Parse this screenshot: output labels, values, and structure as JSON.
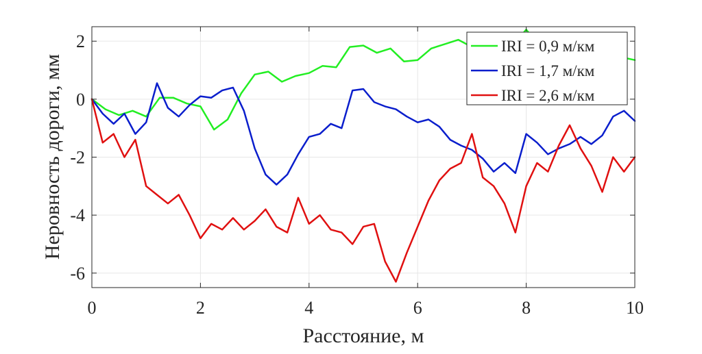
{
  "chart_data": {
    "type": "line",
    "title": "",
    "xlabel": "Расстояние, м",
    "ylabel": "Неровность дороги, мм",
    "xlim": [
      0,
      10
    ],
    "ylim": [
      -6.5,
      2.5
    ],
    "xticks": [
      0,
      2,
      4,
      6,
      8,
      10
    ],
    "yticks": [
      -6,
      -4,
      -2,
      0,
      2
    ],
    "xtick_labels": [
      "0",
      "2",
      "4",
      "6",
      "8",
      "10"
    ],
    "ytick_labels": [
      "-6",
      "-4",
      "-2",
      "0",
      "2"
    ],
    "grid": true,
    "legend_position": "top-right",
    "series": [
      {
        "name": "IRI = 0,9 м/км",
        "color": "#22ee22",
        "x": [
          0,
          0.25,
          0.5,
          0.75,
          1.0,
          1.25,
          1.5,
          1.75,
          2.0,
          2.25,
          2.5,
          2.75,
          3.0,
          3.25,
          3.5,
          3.75,
          4.0,
          4.25,
          4.5,
          4.75,
          5.0,
          5.25,
          5.5,
          5.75,
          6.0,
          6.25,
          6.5,
          6.75,
          7.0,
          7.25,
          7.5,
          7.75,
          8.0,
          8.25,
          8.5,
          8.75,
          9.0,
          9.25,
          9.5,
          9.75,
          10.0
        ],
        "y": [
          0,
          -0.35,
          -0.55,
          -0.4,
          -0.6,
          0.05,
          0.05,
          -0.15,
          -0.25,
          -1.05,
          -0.7,
          0.2,
          0.85,
          0.95,
          0.6,
          0.8,
          0.9,
          1.15,
          1.1,
          1.8,
          1.85,
          1.6,
          1.75,
          1.3,
          1.35,
          1.75,
          1.9,
          2.05,
          1.8,
          1.85,
          2.05,
          1.85,
          2.4,
          1.8,
          1.75,
          1.9,
          1.55,
          1.75,
          1.6,
          1.45,
          1.35
        ]
      },
      {
        "name": "IRI = 1,7 м/км",
        "color": "#0a1ecc",
        "x": [
          0,
          0.2,
          0.4,
          0.6,
          0.8,
          1.0,
          1.2,
          1.4,
          1.6,
          1.8,
          2.0,
          2.2,
          2.4,
          2.6,
          2.8,
          3.0,
          3.2,
          3.4,
          3.6,
          3.8,
          4.0,
          4.2,
          4.4,
          4.6,
          4.8,
          5.0,
          5.2,
          5.4,
          5.6,
          5.8,
          6.0,
          6.2,
          6.4,
          6.6,
          6.8,
          7.0,
          7.2,
          7.4,
          7.6,
          7.8,
          8.0,
          8.2,
          8.4,
          8.6,
          8.8,
          9.0,
          9.2,
          9.4,
          9.6,
          9.8,
          10.0
        ],
        "y": [
          0,
          -0.5,
          -0.85,
          -0.5,
          -1.2,
          -0.8,
          0.55,
          -0.3,
          -0.6,
          -0.2,
          0.1,
          0.05,
          0.3,
          0.4,
          -0.4,
          -1.7,
          -2.6,
          -2.95,
          -2.6,
          -1.9,
          -1.3,
          -1.2,
          -0.85,
          -1.0,
          0.3,
          0.35,
          -0.1,
          -0.25,
          -0.35,
          -0.6,
          -0.8,
          -0.7,
          -0.95,
          -1.4,
          -1.6,
          -1.75,
          -2.05,
          -2.5,
          -2.2,
          -2.55,
          -1.2,
          -1.5,
          -1.9,
          -1.7,
          -1.55,
          -1.3,
          -1.55,
          -1.25,
          -0.6,
          -0.4,
          -0.75
        ]
      },
      {
        "name": "IRI = 2,6 м/км",
        "color": "#e01010",
        "x": [
          0,
          0.2,
          0.4,
          0.6,
          0.8,
          1.0,
          1.2,
          1.4,
          1.6,
          1.8,
          2.0,
          2.2,
          2.4,
          2.6,
          2.8,
          3.0,
          3.2,
          3.4,
          3.6,
          3.8,
          4.0,
          4.2,
          4.4,
          4.6,
          4.8,
          5.0,
          5.2,
          5.4,
          5.6,
          5.8,
          6.0,
          6.2,
          6.4,
          6.6,
          6.8,
          7.0,
          7.2,
          7.4,
          7.6,
          7.8,
          8.0,
          8.2,
          8.4,
          8.6,
          8.8,
          9.0,
          9.2,
          9.4,
          9.6,
          9.8,
          10.0
        ],
        "y": [
          0,
          -1.5,
          -1.2,
          -2.0,
          -1.4,
          -3.0,
          -3.3,
          -3.6,
          -3.3,
          -4.0,
          -4.8,
          -4.3,
          -4.5,
          -4.1,
          -4.5,
          -4.2,
          -3.8,
          -4.4,
          -4.6,
          -3.4,
          -4.3,
          -4.0,
          -4.5,
          -4.6,
          -5.0,
          -4.4,
          -4.3,
          -5.6,
          -6.3,
          -5.3,
          -4.4,
          -3.5,
          -2.8,
          -2.4,
          -2.2,
          -1.2,
          -2.7,
          -3.0,
          -3.6,
          -4.6,
          -3.0,
          -2.2,
          -2.5,
          -1.6,
          -0.9,
          -1.7,
          -2.3,
          -3.2,
          -2.0,
          -2.5,
          -2.0
        ]
      }
    ]
  }
}
